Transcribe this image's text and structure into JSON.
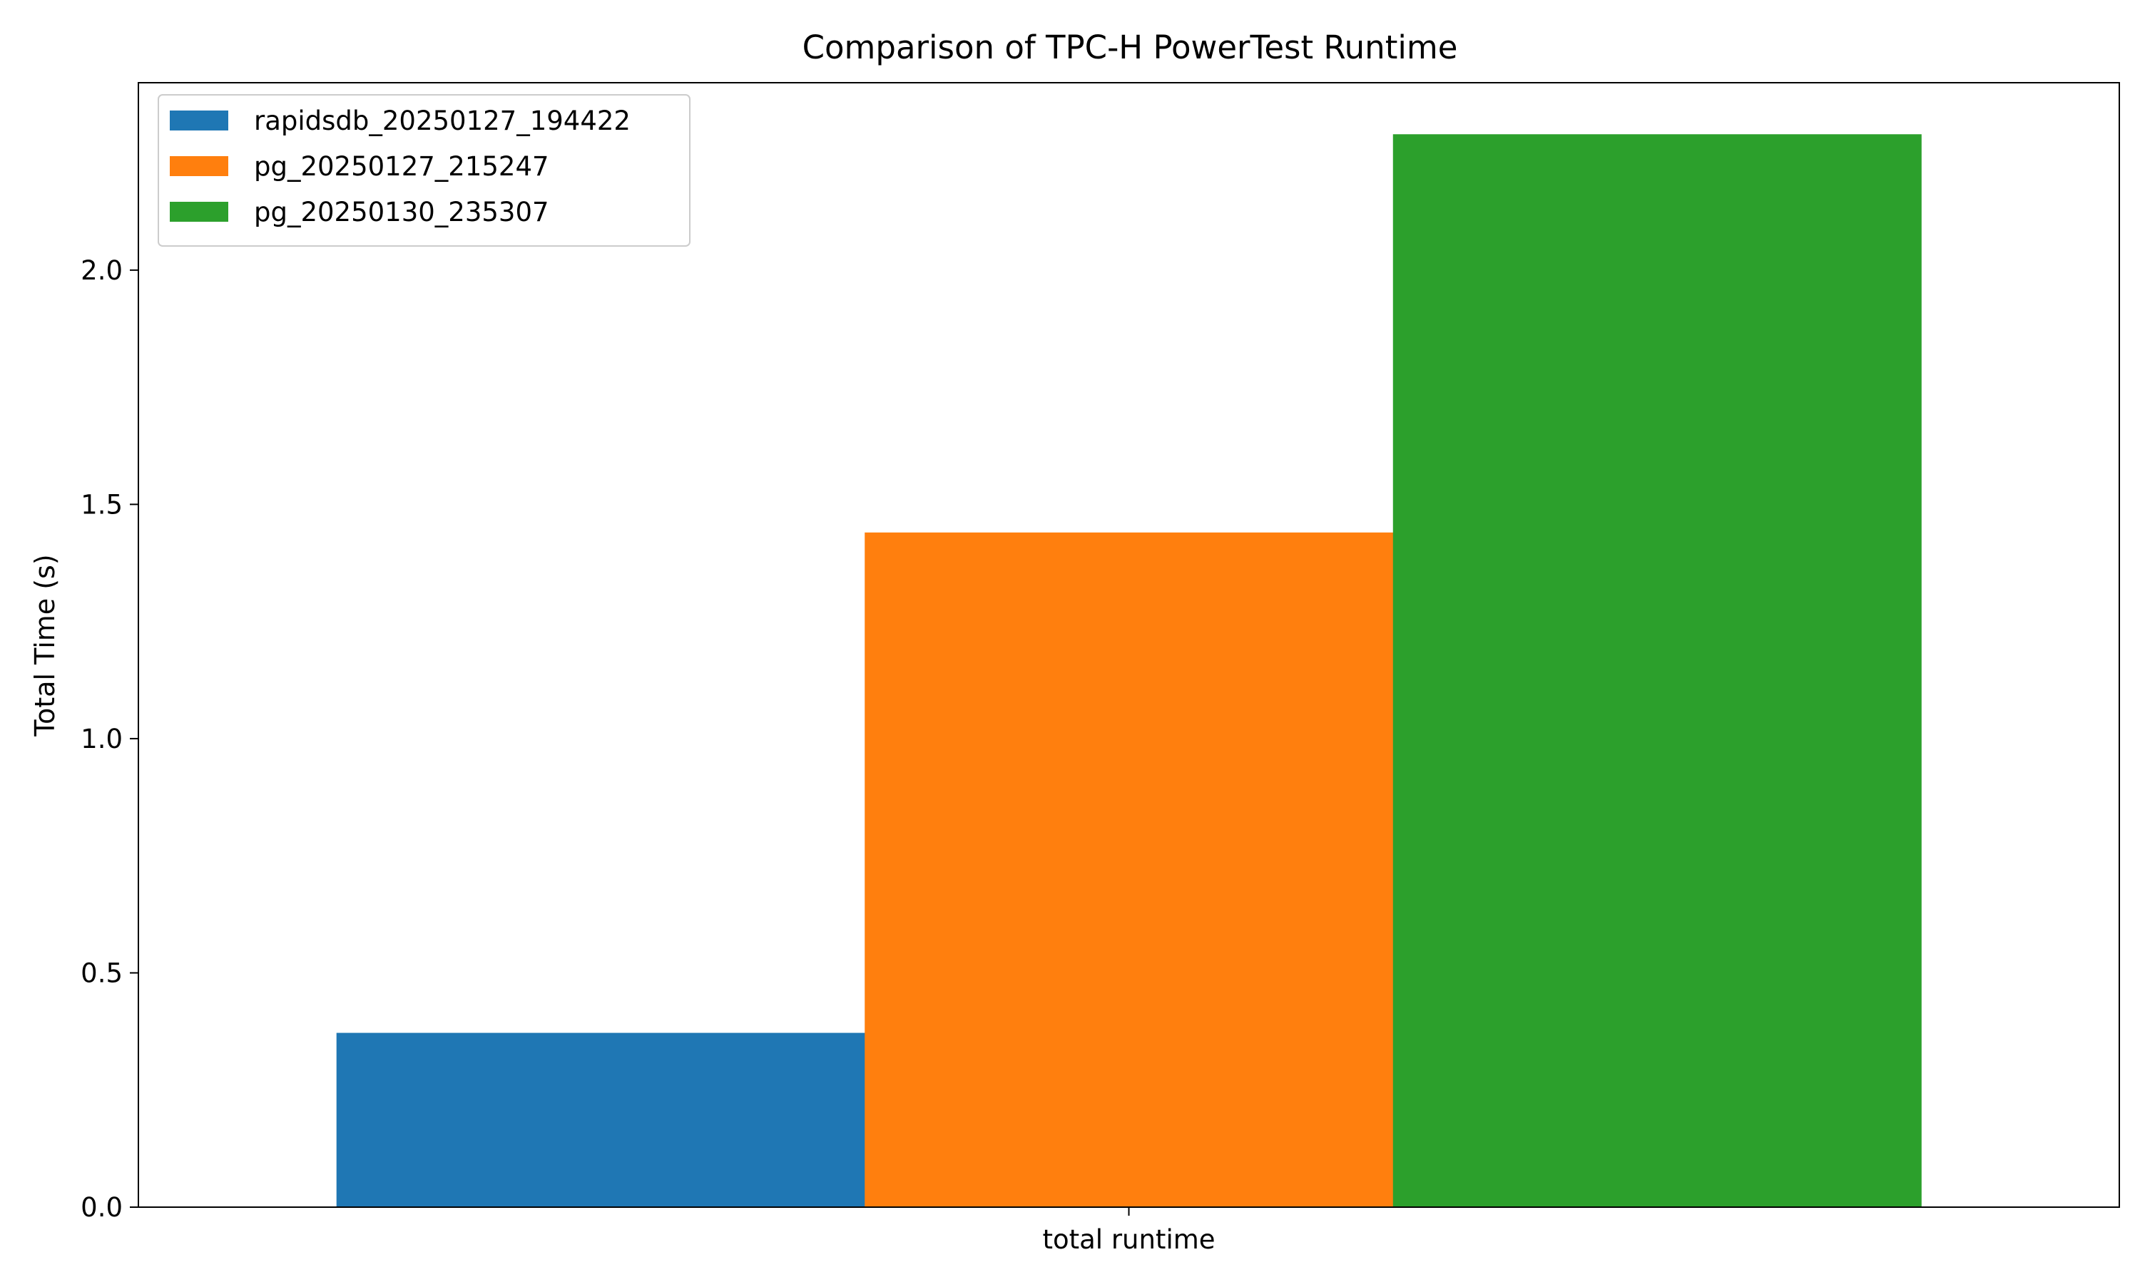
{
  "chart_data": {
    "type": "bar",
    "title": "Comparison of TPC-H PowerTest Runtime",
    "xlabel": "",
    "ylabel": "Total Time (s)",
    "categories": [
      "total runtime"
    ],
    "series": [
      {
        "name": "rapidsdb_20250127_194422",
        "values": [
          0.372
        ],
        "color": "#1f77b4"
      },
      {
        "name": "pg_20250127_215247",
        "values": [
          1.44
        ],
        "color": "#ff7f0e"
      },
      {
        "name": "pg_20250130_235307",
        "values": [
          2.29
        ],
        "color": "#2ca02c"
      }
    ],
    "ylim": [
      0,
      2.4
    ],
    "yticks": [
      "0.0",
      "0.5",
      "1.0",
      "1.5",
      "2.0"
    ],
    "grid": false,
    "legend_position": "top-left"
  }
}
